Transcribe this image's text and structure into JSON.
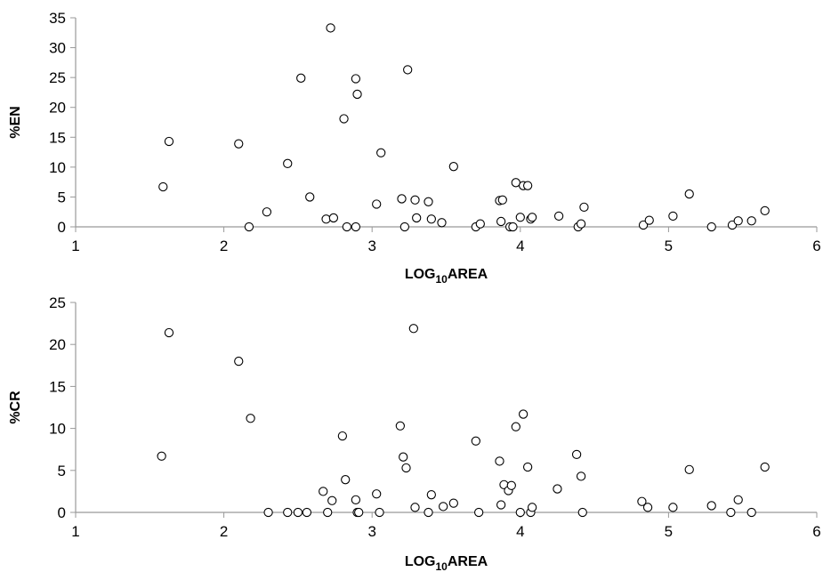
{
  "chart_data": [
    {
      "type": "scatter",
      "title": "",
      "xlabel": "LOG",
      "xlabel_subscript": "10",
      "xlabel_suffix": "AREA",
      "ylabel": "%EN",
      "xlim": [
        1,
        6
      ],
      "ylim": [
        0,
        35
      ],
      "xticks": [
        "1",
        "2",
        "3",
        "4",
        "5",
        "6"
      ],
      "yticks": [
        "0",
        "5",
        "10",
        "15",
        "20",
        "25",
        "30",
        "35"
      ],
      "grid": false,
      "legend": "none",
      "points": [
        [
          1.59,
          6.7
        ],
        [
          1.63,
          14.3
        ],
        [
          2.1,
          13.9
        ],
        [
          2.17,
          0
        ],
        [
          2.29,
          2.5
        ],
        [
          2.43,
          10.6
        ],
        [
          2.52,
          24.9
        ],
        [
          2.58,
          5.0
        ],
        [
          2.69,
          1.3
        ],
        [
          2.72,
          33.3
        ],
        [
          2.74,
          1.5
        ],
        [
          2.81,
          18.1
        ],
        [
          2.83,
          0
        ],
        [
          2.89,
          24.8
        ],
        [
          2.9,
          22.2
        ],
        [
          2.89,
          0
        ],
        [
          3.03,
          3.8
        ],
        [
          3.06,
          12.4
        ],
        [
          3.2,
          4.7
        ],
        [
          3.22,
          0
        ],
        [
          3.24,
          26.3
        ],
        [
          3.29,
          4.5
        ],
        [
          3.3,
          1.5
        ],
        [
          3.38,
          4.2
        ],
        [
          3.4,
          1.3
        ],
        [
          3.47,
          0.7
        ],
        [
          3.55,
          10.1
        ],
        [
          3.7,
          0
        ],
        [
          3.73,
          0.5
        ],
        [
          3.86,
          4.4
        ],
        [
          3.87,
          0.9
        ],
        [
          3.88,
          4.5
        ],
        [
          3.93,
          0
        ],
        [
          3.95,
          0
        ],
        [
          3.97,
          7.4
        ],
        [
          4.0,
          1.6
        ],
        [
          4.02,
          6.9
        ],
        [
          4.05,
          6.9
        ],
        [
          4.07,
          1.3
        ],
        [
          4.08,
          1.6
        ],
        [
          4.26,
          1.8
        ],
        [
          4.39,
          0
        ],
        [
          4.41,
          0.5
        ],
        [
          4.43,
          3.3
        ],
        [
          4.83,
          0.3
        ],
        [
          4.87,
          1.1
        ],
        [
          5.03,
          1.8
        ],
        [
          5.14,
          5.5
        ],
        [
          5.29,
          0
        ],
        [
          5.43,
          0.3
        ],
        [
          5.47,
          1.0
        ],
        [
          5.56,
          1.0
        ],
        [
          5.65,
          2.7
        ]
      ]
    },
    {
      "type": "scatter",
      "title": "",
      "xlabel": "LOG",
      "xlabel_subscript": "10",
      "xlabel_suffix": "AREA",
      "ylabel": "%CR",
      "xlim": [
        1,
        6
      ],
      "ylim": [
        0,
        25
      ],
      "xticks": [
        "1",
        "2",
        "3",
        "4",
        "5",
        "6"
      ],
      "yticks": [
        "0",
        "5",
        "10",
        "15",
        "20",
        "25"
      ],
      "grid": false,
      "legend": "none",
      "points": [
        [
          1.58,
          6.7
        ],
        [
          1.63,
          21.4
        ],
        [
          2.1,
          18.0
        ],
        [
          2.18,
          11.2
        ],
        [
          2.3,
          0
        ],
        [
          2.43,
          0
        ],
        [
          2.5,
          0
        ],
        [
          2.56,
          0
        ],
        [
          2.67,
          2.5
        ],
        [
          2.7,
          0
        ],
        [
          2.73,
          1.4
        ],
        [
          2.8,
          9.1
        ],
        [
          2.82,
          3.9
        ],
        [
          2.89,
          1.5
        ],
        [
          2.9,
          0
        ],
        [
          2.91,
          0
        ],
        [
          3.03,
          2.2
        ],
        [
          3.05,
          0
        ],
        [
          3.19,
          10.3
        ],
        [
          3.21,
          6.6
        ],
        [
          3.23,
          5.3
        ],
        [
          3.28,
          21.9
        ],
        [
          3.29,
          0.6
        ],
        [
          3.38,
          0
        ],
        [
          3.4,
          2.1
        ],
        [
          3.48,
          0.7
        ],
        [
          3.55,
          1.1
        ],
        [
          3.7,
          8.5
        ],
        [
          3.72,
          0
        ],
        [
          3.86,
          6.1
        ],
        [
          3.87,
          0.9
        ],
        [
          3.89,
          3.3
        ],
        [
          3.92,
          2.6
        ],
        [
          3.94,
          3.2
        ],
        [
          3.97,
          10.2
        ],
        [
          4.0,
          0
        ],
        [
          4.02,
          11.7
        ],
        [
          4.05,
          5.4
        ],
        [
          4.07,
          0
        ],
        [
          4.08,
          0.6
        ],
        [
          4.25,
          2.8
        ],
        [
          4.38,
          6.9
        ],
        [
          4.41,
          4.3
        ],
        [
          4.42,
          0
        ],
        [
          4.82,
          1.3
        ],
        [
          4.86,
          0.6
        ],
        [
          5.03,
          0.6
        ],
        [
          5.14,
          5.1
        ],
        [
          5.29,
          0.8
        ],
        [
          5.42,
          0
        ],
        [
          5.47,
          1.5
        ],
        [
          5.56,
          0
        ],
        [
          5.65,
          5.4
        ]
      ]
    }
  ]
}
